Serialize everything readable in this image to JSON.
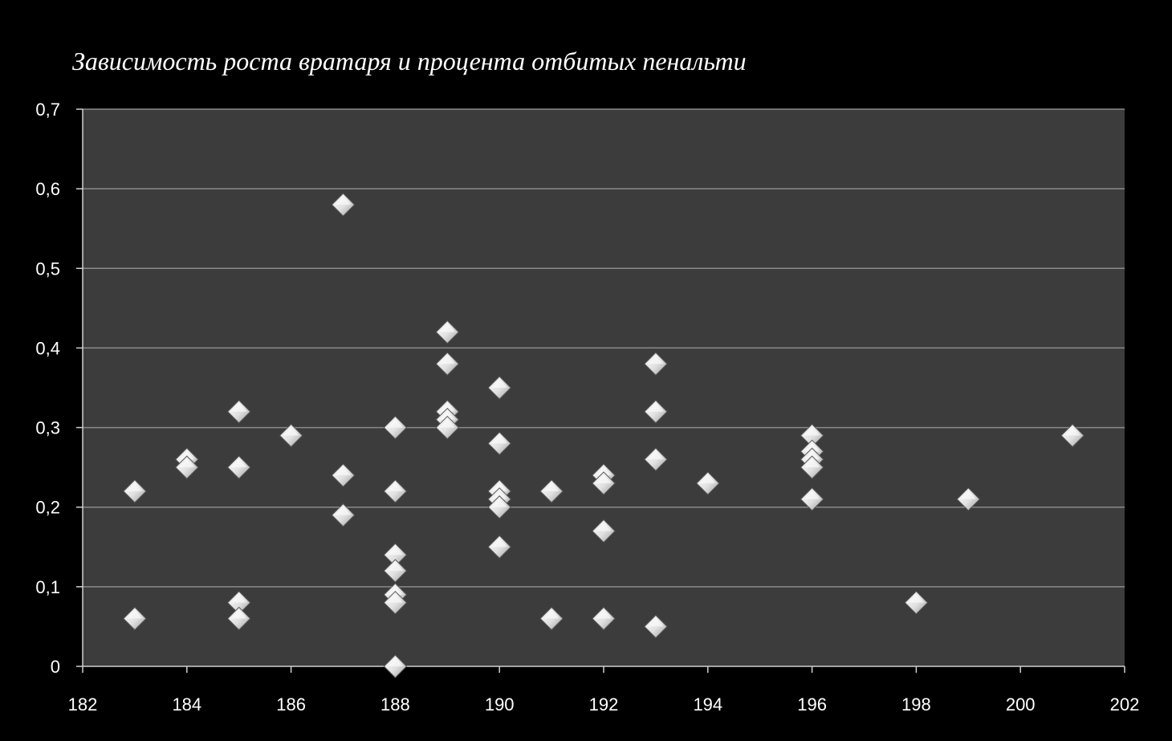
{
  "chart_data": {
    "type": "scatter",
    "title": "Зависимость роста вратаря и  процента отбитых пенальти",
    "xlim": [
      182,
      202
    ],
    "ylim": [
      0,
      0.7
    ],
    "x_ticks": [
      "182",
      "184",
      "186",
      "188",
      "190",
      "192",
      "194",
      "196",
      "198",
      "200",
      "202"
    ],
    "y_ticks": [
      "0",
      "0,1",
      "0,2",
      "0,3",
      "0,4",
      "0,5",
      "0,6",
      "0,7"
    ],
    "grid": true,
    "legend": "none",
    "colors": {
      "background": "#000000",
      "plot_area": "#3c3c3c",
      "grid": "#8a8a8a",
      "text": "#ffffff",
      "marker": "#e6e6e6"
    },
    "points": [
      {
        "x": 183,
        "y": 0.22
      },
      {
        "x": 183,
        "y": 0.06
      },
      {
        "x": 184,
        "y": 0.26
      },
      {
        "x": 184,
        "y": 0.25
      },
      {
        "x": 185,
        "y": 0.32
      },
      {
        "x": 185,
        "y": 0.25
      },
      {
        "x": 185,
        "y": 0.08
      },
      {
        "x": 185,
        "y": 0.06
      },
      {
        "x": 186,
        "y": 0.29
      },
      {
        "x": 187,
        "y": 0.58
      },
      {
        "x": 187,
        "y": 0.24
      },
      {
        "x": 187,
        "y": 0.19
      },
      {
        "x": 188,
        "y": 0.3
      },
      {
        "x": 188,
        "y": 0.22
      },
      {
        "x": 188,
        "y": 0.14
      },
      {
        "x": 188,
        "y": 0.12
      },
      {
        "x": 188,
        "y": 0.09
      },
      {
        "x": 188,
        "y": 0.08
      },
      {
        "x": 188,
        "y": 0.0
      },
      {
        "x": 189,
        "y": 0.42
      },
      {
        "x": 189,
        "y": 0.38
      },
      {
        "x": 189,
        "y": 0.32
      },
      {
        "x": 189,
        "y": 0.31
      },
      {
        "x": 189,
        "y": 0.3
      },
      {
        "x": 190,
        "y": 0.35
      },
      {
        "x": 190,
        "y": 0.28
      },
      {
        "x": 190,
        "y": 0.22
      },
      {
        "x": 190,
        "y": 0.21
      },
      {
        "x": 190,
        "y": 0.2
      },
      {
        "x": 190,
        "y": 0.15
      },
      {
        "x": 191,
        "y": 0.22
      },
      {
        "x": 191,
        "y": 0.06
      },
      {
        "x": 192,
        "y": 0.24
      },
      {
        "x": 192,
        "y": 0.23
      },
      {
        "x": 192,
        "y": 0.17
      },
      {
        "x": 192,
        "y": 0.06
      },
      {
        "x": 193,
        "y": 0.38
      },
      {
        "x": 193,
        "y": 0.32
      },
      {
        "x": 193,
        "y": 0.26
      },
      {
        "x": 193,
        "y": 0.05
      },
      {
        "x": 194,
        "y": 0.23
      },
      {
        "x": 196,
        "y": 0.29
      },
      {
        "x": 196,
        "y": 0.27
      },
      {
        "x": 196,
        "y": 0.26
      },
      {
        "x": 196,
        "y": 0.25
      },
      {
        "x": 196,
        "y": 0.21
      },
      {
        "x": 198,
        "y": 0.08
      },
      {
        "x": 199,
        "y": 0.21
      },
      {
        "x": 201,
        "y": 0.29
      }
    ]
  }
}
